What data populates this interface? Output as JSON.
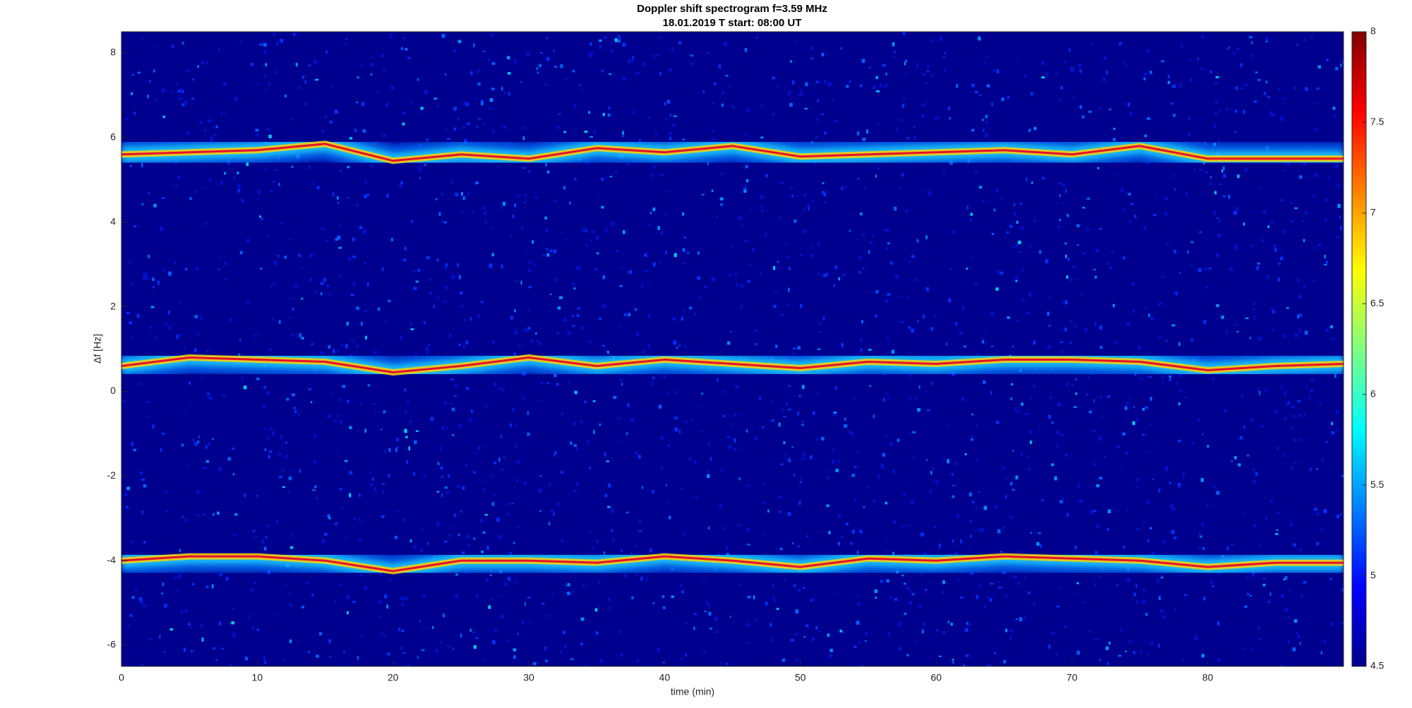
{
  "chart_data": {
    "type": "spectrogram",
    "title": "Doppler shift spectrogram f=3.59 MHz",
    "subtitle": "18.01.2019   T start: 08:00 UT",
    "x_label": "time (min)",
    "y_label": "Δf [Hz]",
    "x": [
      0,
      5,
      10,
      15,
      20,
      25,
      30,
      35,
      40,
      45,
      50,
      55,
      60,
      65,
      70,
      75,
      80,
      85,
      90
    ],
    "series": [
      {
        "color": "#e8102a",
        "values": [
          5.6,
          5.65,
          5.7,
          5.85,
          5.45,
          5.6,
          5.5,
          5.75,
          5.65,
          5.8,
          5.55,
          5.6,
          5.65,
          5.7,
          5.6,
          5.8,
          5.5,
          5.5,
          5.5
        ]
      },
      {
        "color": "#e8102a",
        "values": [
          0.6,
          0.8,
          0.75,
          0.7,
          0.45,
          0.6,
          0.8,
          0.6,
          0.75,
          0.65,
          0.55,
          0.7,
          0.65,
          0.75,
          0.75,
          0.7,
          0.5,
          0.6,
          0.65
        ]
      },
      {
        "color": "#e8102a",
        "values": [
          -4,
          -3.9,
          -3.9,
          -4,
          -4.25,
          -4,
          -4,
          -4.05,
          -3.9,
          -4,
          -4.15,
          -3.95,
          -4,
          -3.9,
          -3.95,
          -4,
          -4.15,
          -4.05,
          -4.05
        ]
      }
    ],
    "xlim": [
      0,
      90
    ],
    "xticks": [
      0,
      10,
      20,
      30,
      40,
      50,
      60,
      70,
      80
    ],
    "ylim": [
      -6.5,
      8.5
    ],
    "yticks": [
      -6,
      -4,
      -2,
      0,
      2,
      4,
      6,
      8
    ],
    "colorbar": {
      "colormap": "jet",
      "lim": [
        4.5,
        8
      ],
      "ticks": [
        4.5,
        5,
        5.5,
        6,
        6.5,
        7,
        7.5,
        8
      ]
    }
  }
}
